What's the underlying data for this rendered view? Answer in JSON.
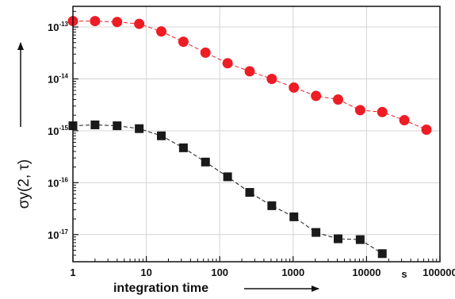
{
  "chart_data": {
    "type": "scatter",
    "title": "",
    "xlabel": "integration time",
    "x_unit": "s",
    "ylabel": "σy(2, τ)",
    "x_scale": "log",
    "y_scale": "log",
    "xlim": [
      1,
      100000
    ],
    "ylim": [
      3e-18,
      2.5e-13
    ],
    "grid": true,
    "x_ticks": [
      {
        "value": 1,
        "label": "1"
      },
      {
        "value": 10,
        "label": "10"
      },
      {
        "value": 100,
        "label": "100"
      },
      {
        "value": 1000,
        "label": "1000"
      },
      {
        "value": 10000,
        "label": "10000"
      },
      {
        "value": 100000,
        "label": "100000"
      }
    ],
    "y_ticks": [
      {
        "value": 1e-13,
        "base": "10",
        "exp": "-13"
      },
      {
        "value": 1e-14,
        "base": "10",
        "exp": "-14"
      },
      {
        "value": 1e-15,
        "base": "10",
        "exp": "-15"
      },
      {
        "value": 1e-16,
        "base": "10",
        "exp": "-16"
      },
      {
        "value": 1e-17,
        "base": "10",
        "exp": "-17"
      }
    ],
    "series": [
      {
        "marker": "circle",
        "color": "#ee1c25",
        "line_color": "#ee1c25",
        "x": [
          1,
          2,
          4,
          8,
          16,
          32,
          64,
          128,
          256,
          512,
          1024,
          2048,
          4096,
          8192,
          16384,
          32768,
          65536
        ],
        "y": [
          1.3e-13,
          1.3e-13,
          1.25e-13,
          1.15e-13,
          8.2e-14,
          5.2e-14,
          3.2e-14,
          2e-14,
          1.4e-14,
          1e-14,
          6.8e-15,
          4.7e-15,
          4e-15,
          2.5e-15,
          2.3e-15,
          1.6e-15,
          1.05e-15
        ]
      },
      {
        "marker": "square",
        "color": "#1a1a1a",
        "line_color": "#1a1a1a",
        "x": [
          1,
          2,
          4,
          8,
          16,
          32,
          64,
          128,
          256,
          512,
          1024,
          2048,
          4096,
          8192,
          16384
        ],
        "y": [
          1.25e-15,
          1.3e-15,
          1.25e-15,
          1.1e-15,
          8e-16,
          4.7e-16,
          2.5e-16,
          1.3e-16,
          6.5e-17,
          3.6e-17,
          2.2e-17,
          1.1e-17,
          8.3e-18,
          8e-18,
          4.3e-18
        ]
      }
    ]
  }
}
